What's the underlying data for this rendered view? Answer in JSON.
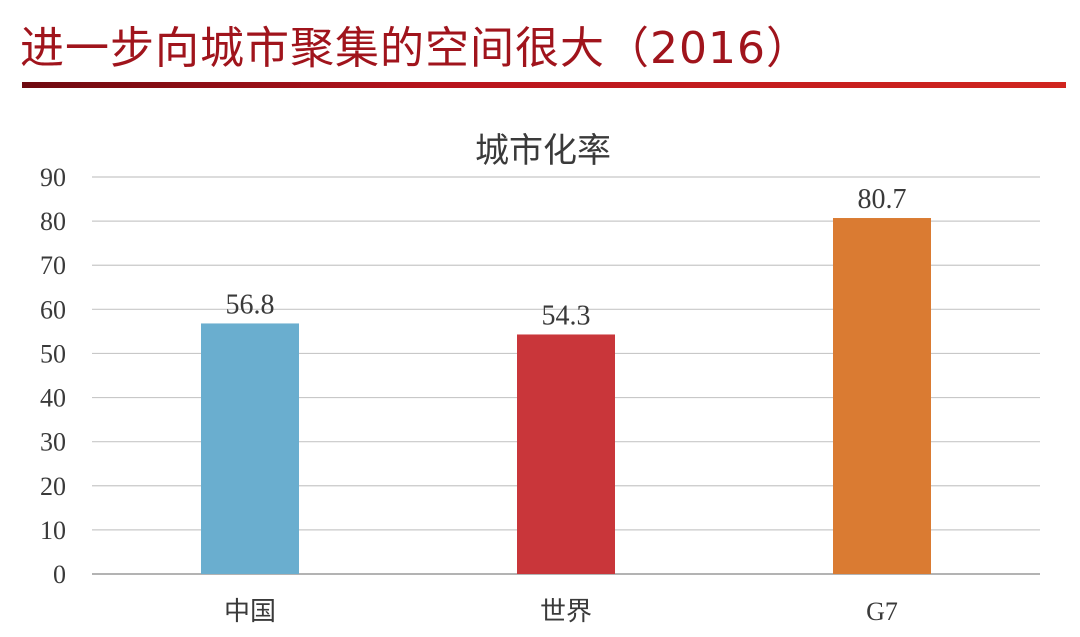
{
  "slide": {
    "title": "进一步向城市聚集的空间很大（2016）"
  },
  "chart_data": {
    "type": "bar",
    "title": "城市化率",
    "categories": [
      "中国",
      "世界",
      "G7"
    ],
    "values": [
      56.8,
      54.3,
      80.7
    ],
    "data_labels": [
      "56.8",
      "54.3",
      "80.7"
    ],
    "bar_colors": [
      "#6aaecf",
      "#c9363a",
      "#da7b32"
    ],
    "ylim": [
      0,
      90
    ],
    "yticks": [
      0,
      10,
      20,
      30,
      40,
      50,
      60,
      70,
      80,
      90
    ],
    "grid": true,
    "legend": "none",
    "xlabel": "",
    "ylabel": ""
  },
  "colors": {
    "title": "#a0141c",
    "gridline": "#c8c8c8",
    "text": "#3a3a3a"
  }
}
